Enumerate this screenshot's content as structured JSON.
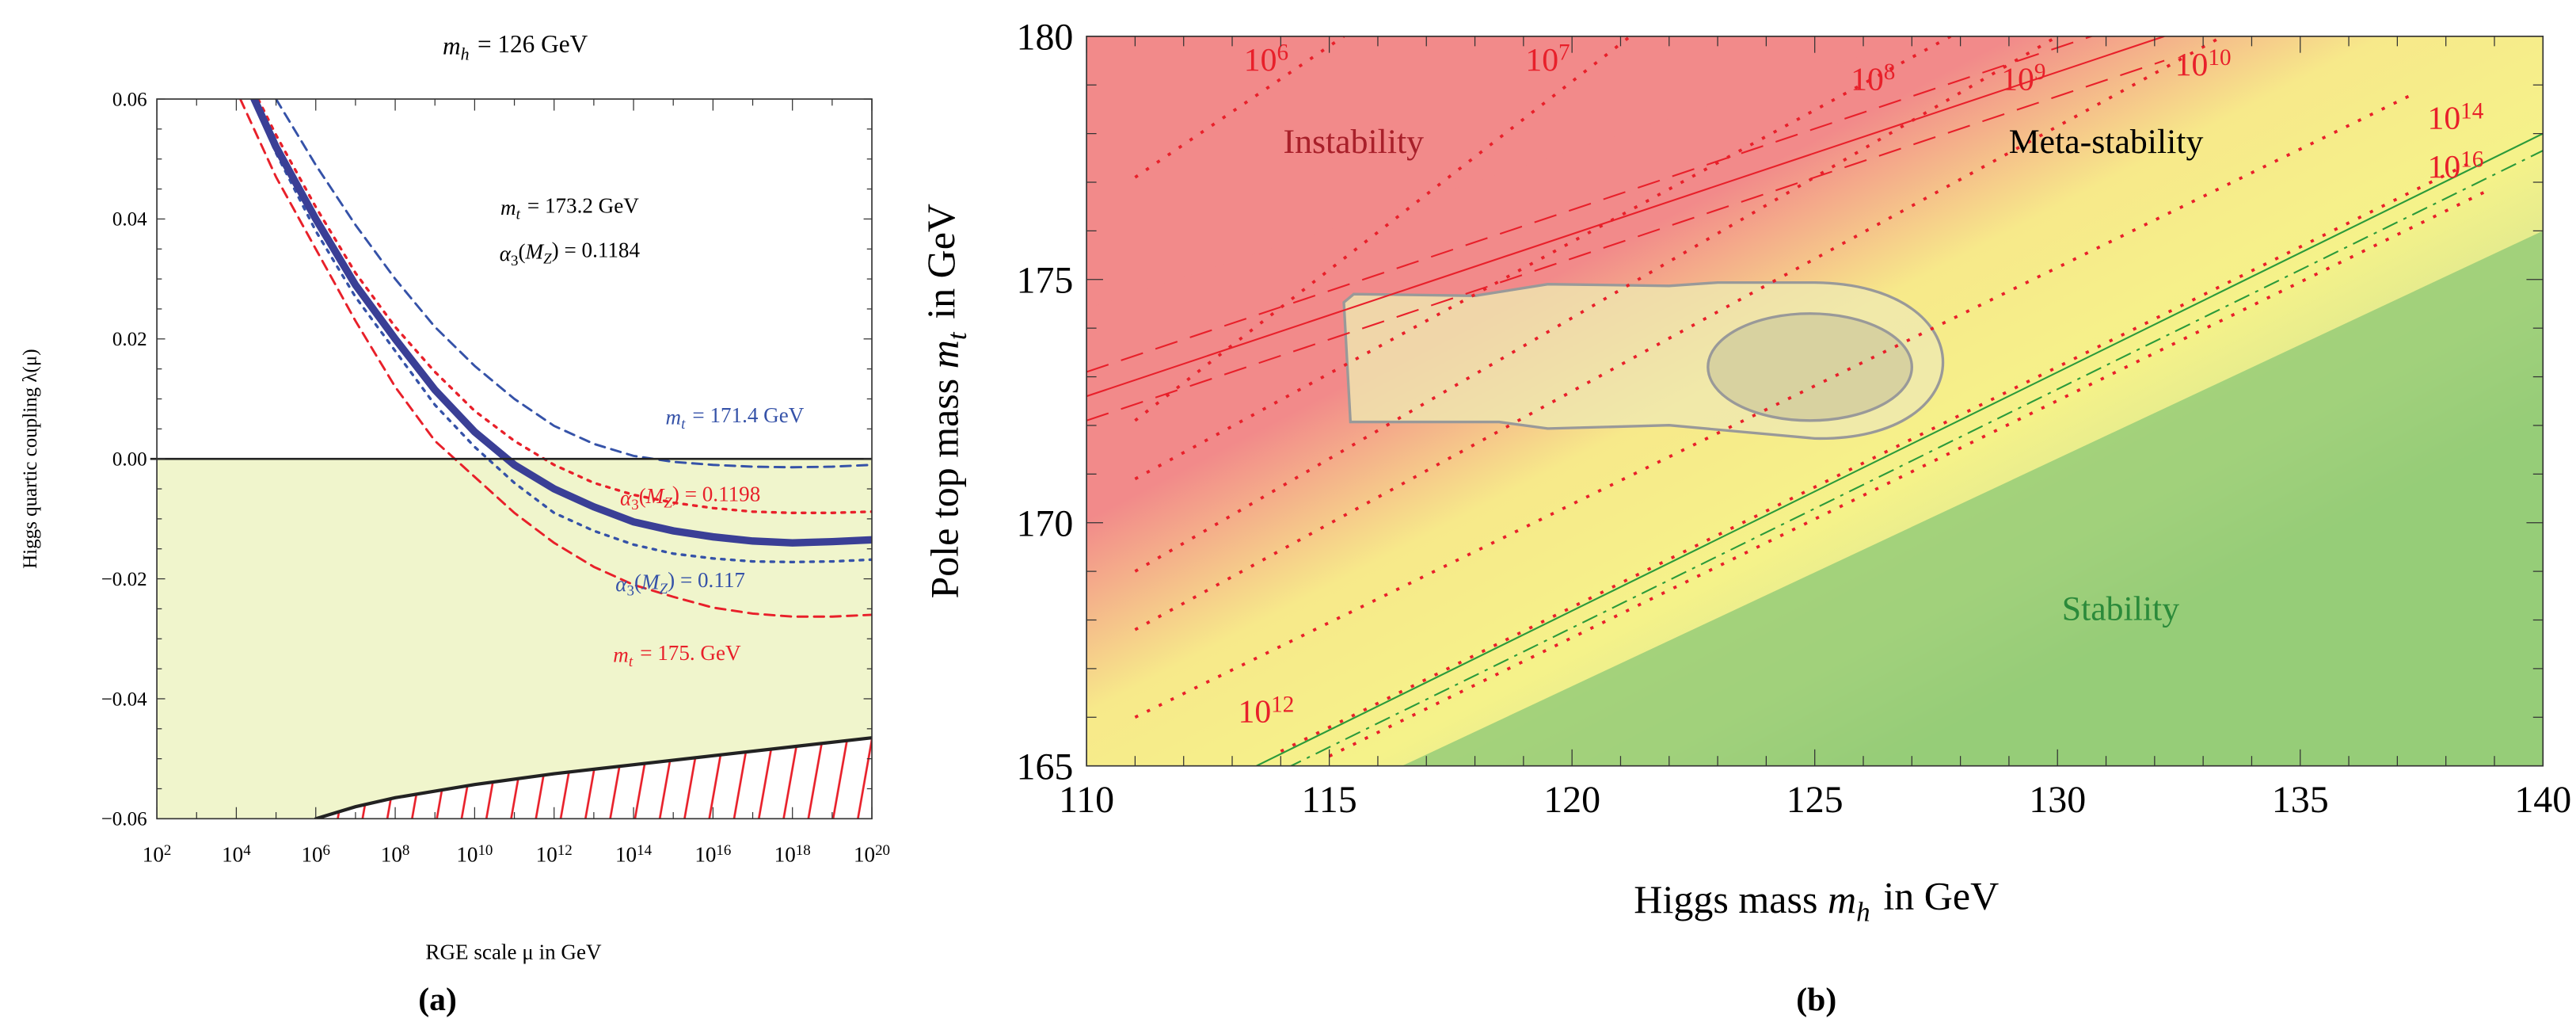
{
  "chart_data": [
    {
      "type": "line",
      "panel_label": "(a)",
      "title": "m_h = 126 GeV",
      "title_parts": {
        "var": "m",
        "sub": "h",
        "rest": " = 126 GeV"
      },
      "xlabel": "RGE scale μ in GeV",
      "ylabel": "Higgs quartic coupling λ(μ)",
      "x_scale": "log10",
      "xlim": [
        2,
        20
      ],
      "ylim": [
        -0.06,
        0.06
      ],
      "x_ticks": [
        2,
        4,
        6,
        8,
        10,
        12,
        14,
        16,
        18,
        20
      ],
      "x_tick_labels": [
        "10^2",
        "10^4",
        "10^6",
        "10^8",
        "10^10",
        "10^12",
        "10^14",
        "10^16",
        "10^18",
        "10^20"
      ],
      "y_ticks": [
        -0.06,
        -0.04,
        -0.02,
        0.0,
        0.02,
        0.04,
        0.06
      ],
      "y_tick_labels": [
        "−0.06",
        "−0.04",
        "−0.02",
        "0.00",
        "0.02",
        "0.04",
        "0.06"
      ],
      "annotations": {
        "central_mt": "m_t = 173.2 GeV",
        "central_alpha": "α3(M_Z) = 0.1184"
      },
      "series": [
        {
          "name": "m_t = 173.2 GeV, α3(M_Z) = 0.1184",
          "label": "",
          "style": "solid-thick",
          "color": "#3a3f96",
          "points": [
            [
              4.45,
              0.06
            ],
            [
              5,
              0.052
            ],
            [
              6,
              0.04
            ],
            [
              7,
              0.029
            ],
            [
              8,
              0.02
            ],
            [
              9,
              0.0115
            ],
            [
              10,
              0.0045
            ],
            [
              11,
              -0.001
            ],
            [
              12,
              -0.005
            ],
            [
              13,
              -0.008
            ],
            [
              14,
              -0.0105
            ],
            [
              15,
              -0.012
            ],
            [
              16,
              -0.013
            ],
            [
              17,
              -0.0137
            ],
            [
              18,
              -0.014
            ],
            [
              19,
              -0.0138
            ],
            [
              20,
              -0.0135
            ]
          ]
        },
        {
          "name": "m_t = 171.4 GeV",
          "label": "m_t = 171.4 GeV",
          "style": "dashed",
          "color": "#3552a8",
          "points": [
            [
              5.0,
              0.06
            ],
            [
              6,
              0.049
            ],
            [
              7,
              0.039
            ],
            [
              8,
              0.03
            ],
            [
              9,
              0.022
            ],
            [
              10,
              0.0155
            ],
            [
              11,
              0.01
            ],
            [
              12,
              0.0055
            ],
            [
              13,
              0.0025
            ],
            [
              14,
              0.0005
            ],
            [
              15,
              -0.0005
            ],
            [
              16,
              -0.001
            ],
            [
              17,
              -0.0013
            ],
            [
              18,
              -0.0014
            ],
            [
              19,
              -0.0013
            ],
            [
              20,
              -0.001
            ]
          ]
        },
        {
          "name": "m_t = 175. GeV",
          "label": "m_t = 175. GeV",
          "style": "dashed",
          "color": "#e8202a",
          "points": [
            [
              4.1,
              0.06
            ],
            [
              5,
              0.047
            ],
            [
              6,
              0.035
            ],
            [
              7,
              0.023
            ],
            [
              8,
              0.012
            ],
            [
              9,
              0.003
            ],
            [
              10,
              -0.003
            ],
            [
              11,
              -0.009
            ],
            [
              12,
              -0.014
            ],
            [
              13,
              -0.018
            ],
            [
              14,
              -0.021
            ],
            [
              15,
              -0.023
            ],
            [
              16,
              -0.0248
            ],
            [
              17,
              -0.0258
            ],
            [
              18,
              -0.0263
            ],
            [
              19,
              -0.0263
            ],
            [
              20,
              -0.026
            ]
          ]
        },
        {
          "name": "α3(M_Z) = 0.1198",
          "label": "α3(M_Z) = 0.1198",
          "style": "dotted",
          "color": "#e8202a",
          "points": [
            [
              4.55,
              0.06
            ],
            [
              5,
              0.054
            ],
            [
              6,
              0.042
            ],
            [
              7,
              0.031
            ],
            [
              8,
              0.022
            ],
            [
              9,
              0.0145
            ],
            [
              10,
              0.008
            ],
            [
              11,
              0.003
            ],
            [
              12,
              -0.001
            ],
            [
              13,
              -0.004
            ],
            [
              14,
              -0.006
            ],
            [
              15,
              -0.0073
            ],
            [
              16,
              -0.0082
            ],
            [
              17,
              -0.0088
            ],
            [
              18,
              -0.009
            ],
            [
              19,
              -0.009
            ],
            [
              20,
              -0.0088
            ]
          ]
        },
        {
          "name": "α3(M_Z) = 0.117",
          "label": "α3(M_Z) = 0.117",
          "style": "dotted",
          "color": "#3552a8",
          "points": [
            [
              4.4,
              0.06
            ],
            [
              5,
              0.051
            ],
            [
              6,
              0.038
            ],
            [
              7,
              0.027
            ],
            [
              8,
              0.018
            ],
            [
              9,
              0.009
            ],
            [
              10,
              0.002
            ],
            [
              11,
              -0.004
            ],
            [
              12,
              -0.009
            ],
            [
              13,
              -0.012
            ],
            [
              14,
              -0.0143
            ],
            [
              15,
              -0.0158
            ],
            [
              16,
              -0.0166
            ],
            [
              17,
              -0.0171
            ],
            [
              18,
              -0.0172
            ],
            [
              19,
              -0.0171
            ],
            [
              20,
              -0.0168
            ]
          ]
        },
        {
          "name": "metastability bound",
          "label": "",
          "style": "solid-black",
          "color": "#222222",
          "points": [
            [
              6,
              -0.06
            ],
            [
              7,
              -0.058
            ],
            [
              8,
              -0.0565
            ],
            [
              10,
              -0.0543
            ],
            [
              12,
              -0.0525
            ],
            [
              14,
              -0.051
            ],
            [
              16,
              -0.0495
            ],
            [
              18,
              -0.048
            ],
            [
              20,
              -0.0465
            ]
          ]
        }
      ],
      "regions": {
        "negative_fill": "#f0f5cc",
        "hatch": "#e8202a"
      }
    },
    {
      "type": "heatmap",
      "panel_label": "(b)",
      "xlabel": "Higgs mass m_h in GeV",
      "ylabel": "Pole top mass m_t in GeV",
      "xlim": [
        110,
        140
      ],
      "ylim": [
        165,
        180
      ],
      "x_ticks": [
        110,
        115,
        120,
        125,
        130,
        135,
        140
      ],
      "y_ticks": [
        165,
        170,
        175,
        180
      ],
      "region_labels": [
        {
          "text": "Instability",
          "mh": 115.5,
          "mt": 177.6,
          "color": "#a8202a"
        },
        {
          "text": "Meta-stability",
          "mh": 131,
          "mt": 177.6,
          "color": "#000000"
        },
        {
          "text": "Stability",
          "mh": 131.3,
          "mt": 168.0,
          "color": "#2b8a3a"
        }
      ],
      "colors": {
        "instability": "#f28a8a",
        "metastability": "#f7f08a",
        "stability": "#96cc78"
      },
      "instability_boundary": {
        "mh": [
          110,
          132.2
        ],
        "mt": [
          172.6,
          180
        ]
      },
      "stability_boundary": {
        "mh": [
          113.5,
          140
        ],
        "mt": [
          165,
          178.0
        ]
      },
      "lifetime_lines": [
        {
          "label": "10^6",
          "mh": [
            111,
            115.3
          ],
          "mt": [
            177.1,
            180
          ]
        },
        {
          "label": "10^7",
          "mh": [
            111,
            121.2
          ],
          "mt": [
            172.1,
            180
          ]
        },
        {
          "label": "10^8",
          "mh": [
            111,
            127.8
          ],
          "mt": [
            170.9,
            180
          ]
        },
        {
          "label": "10^9",
          "mh": [
            111,
            130.0
          ],
          "mt": [
            169.0,
            180
          ]
        },
        {
          "label": "10^10",
          "mh": [
            111,
            133.4
          ],
          "mt": [
            167.8,
            180
          ]
        },
        {
          "label": "10^12",
          "mh": [
            111,
            137.3
          ],
          "mt": [
            166.0,
            178.8
          ]
        },
        {
          "label": "10^14",
          "mh": [
            114,
            138.5
          ],
          "mt": [
            165.3,
            177.4
          ]
        },
        {
          "label": "10^16",
          "mh": [
            115,
            138.8
          ],
          "mt": [
            165.2,
            176.8
          ]
        }
      ],
      "lifetime_label_positions": [
        {
          "label": "10^6",
          "mh": 113.7,
          "mt": 179.3
        },
        {
          "label": "10^7",
          "mh": 119.5,
          "mt": 179.3
        },
        {
          "label": "10^8",
          "mh": 126.2,
          "mt": 178.9
        },
        {
          "label": "10^9",
          "mh": 129.3,
          "mt": 178.9
        },
        {
          "label": "10^10",
          "mh": 133.0,
          "mt": 179.2
        },
        {
          "label": "10^14",
          "mh": 138.2,
          "mt": 178.1
        },
        {
          "label": "10^16",
          "mh": 138.2,
          "mt": 177.1
        },
        {
          "label": "10^12",
          "mh": 113.7,
          "mt": 165.9
        }
      ],
      "measurement": {
        "center": {
          "mh": 125,
          "mt": 173.2
        },
        "inner_contour": {
          "mh": [
            122.8,
            127.0
          ],
          "mt": [
            172.1,
            174.3
          ]
        },
        "outer_contour": {
          "mh": [
            115.3,
            127.5
          ],
          "mt": [
            171.8,
            174.7
          ]
        }
      }
    }
  ]
}
